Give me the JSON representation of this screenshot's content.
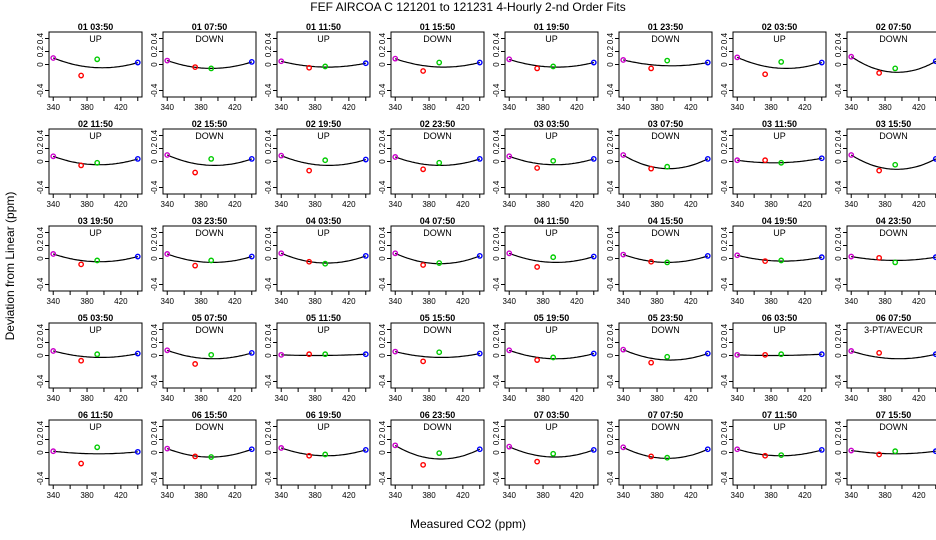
{
  "chart_data": {
    "type": "scatter",
    "title": "FEF   AIRCOA C   121201 to 121231   4-Hourly 2-nd Order Fits",
    "xlabel": "Measured CO2 (ppm)",
    "ylabel": "Deviation from Linear (ppm)",
    "xlim": [
      335,
      445
    ],
    "ylim": [
      -0.5,
      0.5
    ],
    "xticks": [
      340,
      380,
      420
    ],
    "xminorticks": [
      360,
      400,
      440
    ],
    "yticks": [
      -0.4,
      0.0,
      0.2,
      0.4
    ],
    "ytick_labels": [
      "-0.4",
      "0",
      "0.2",
      "0.4"
    ],
    "point_colors": [
      "#cc00cc",
      "#ff0000",
      "#00cc00",
      "#0000ff"
    ],
    "standard_x": [
      340,
      373,
      392,
      440
    ],
    "panels": [
      {
        "title": "01 03:50",
        "label": "UP",
        "points": [
          0.1,
          -0.17,
          0.08,
          0.03
        ],
        "curve": [
          0.1,
          -0.05,
          0.03
        ]
      },
      {
        "title": "01 07:50",
        "label": "DOWN",
        "points": [
          0.06,
          -0.04,
          -0.06,
          0.04
        ],
        "curve": [
          0.06,
          -0.06,
          0.04
        ]
      },
      {
        "title": "01 11:50",
        "label": "UP",
        "points": [
          0.05,
          -0.05,
          -0.03,
          0.02
        ],
        "curve": [
          0.05,
          -0.04,
          0.02
        ]
      },
      {
        "title": "01 15:50",
        "label": "DOWN",
        "points": [
          0.09,
          -0.1,
          0.03,
          0.03
        ],
        "curve": [
          0.09,
          -0.04,
          0.03
        ]
      },
      {
        "title": "01 19:50",
        "label": "UP",
        "points": [
          0.08,
          -0.06,
          -0.03,
          0.03
        ],
        "curve": [
          0.08,
          -0.04,
          0.03
        ]
      },
      {
        "title": "01 23:50",
        "label": "DOWN",
        "points": [
          0.07,
          -0.06,
          0.06,
          0.03
        ],
        "curve": [
          0.07,
          -0.02,
          0.03
        ]
      },
      {
        "title": "02 03:50",
        "label": "UP",
        "points": [
          0.11,
          -0.15,
          0.04,
          0.03
        ],
        "curve": [
          0.11,
          -0.06,
          0.03
        ]
      },
      {
        "title": "02 07:50",
        "label": "DOWN",
        "points": [
          0.12,
          -0.13,
          -0.06,
          0.05
        ],
        "curve": [
          0.12,
          -0.12,
          0.05
        ]
      },
      {
        "title": "02 11:50",
        "label": "UP",
        "points": [
          0.08,
          -0.06,
          -0.02,
          0.04
        ],
        "curve": [
          0.08,
          -0.05,
          0.04
        ]
      },
      {
        "title": "02 15:50",
        "label": "DOWN",
        "points": [
          0.1,
          -0.17,
          0.04,
          0.04
        ],
        "curve": [
          0.1,
          -0.06,
          0.04
        ]
      },
      {
        "title": "02 19:50",
        "label": "UP",
        "points": [
          0.09,
          -0.14,
          0.02,
          0.03
        ],
        "curve": [
          0.09,
          -0.06,
          0.03
        ]
      },
      {
        "title": "02 23:50",
        "label": "DOWN",
        "points": [
          0.07,
          -0.12,
          -0.02,
          0.04
        ],
        "curve": [
          0.07,
          -0.06,
          0.04
        ]
      },
      {
        "title": "03 03:50",
        "label": "UP",
        "points": [
          0.08,
          -0.1,
          0.01,
          0.04
        ],
        "curve": [
          0.08,
          -0.05,
          0.04
        ]
      },
      {
        "title": "03 07:50",
        "label": "DOWN",
        "points": [
          0.1,
          -0.11,
          -0.08,
          0.04
        ],
        "curve": [
          0.1,
          -0.11,
          0.04
        ]
      },
      {
        "title": "03 11:50",
        "label": "UP",
        "points": [
          0.02,
          0.02,
          -0.02,
          0.05
        ],
        "curve": [
          0.02,
          -0.02,
          0.05
        ]
      },
      {
        "title": "03 15:50",
        "label": "DOWN",
        "points": [
          0.1,
          -0.14,
          -0.05,
          0.04
        ],
        "curve": [
          0.1,
          -0.12,
          0.04
        ]
      },
      {
        "title": "03 19:50",
        "label": "UP",
        "points": [
          0.07,
          -0.09,
          -0.03,
          0.03
        ],
        "curve": [
          0.07,
          -0.05,
          0.03
        ]
      },
      {
        "title": "03 23:50",
        "label": "DOWN",
        "points": [
          0.07,
          -0.11,
          -0.03,
          0.03
        ],
        "curve": [
          0.07,
          -0.06,
          0.03
        ]
      },
      {
        "title": "04 03:50",
        "label": "UP",
        "points": [
          0.08,
          -0.05,
          -0.08,
          0.04
        ],
        "curve": [
          0.08,
          -0.07,
          0.04
        ]
      },
      {
        "title": "04 07:50",
        "label": "DOWN",
        "points": [
          0.08,
          -0.1,
          -0.07,
          0.04
        ],
        "curve": [
          0.08,
          -0.08,
          0.04
        ]
      },
      {
        "title": "04 11:50",
        "label": "UP",
        "points": [
          0.08,
          -0.13,
          0.02,
          0.03
        ],
        "curve": [
          0.08,
          -0.06,
          0.03
        ]
      },
      {
        "title": "04 15:50",
        "label": "DOWN",
        "points": [
          0.06,
          -0.05,
          -0.06,
          0.04
        ],
        "curve": [
          0.06,
          -0.06,
          0.04
        ]
      },
      {
        "title": "04 19:50",
        "label": "UP",
        "points": [
          0.05,
          -0.04,
          -0.03,
          0.02
        ],
        "curve": [
          0.05,
          -0.04,
          0.02
        ]
      },
      {
        "title": "04 23:50",
        "label": "DOWN",
        "points": [
          0.03,
          0.01,
          -0.06,
          0.02
        ],
        "curve": [
          0.03,
          -0.03,
          0.02
        ]
      },
      {
        "title": "05 03:50",
        "label": "UP",
        "points": [
          0.07,
          -0.08,
          0.02,
          0.03
        ],
        "curve": [
          0.07,
          -0.03,
          0.03
        ]
      },
      {
        "title": "05 07:50",
        "label": "DOWN",
        "points": [
          0.08,
          -0.13,
          0.01,
          0.04
        ],
        "curve": [
          0.08,
          -0.05,
          0.04
        ]
      },
      {
        "title": "05 11:50",
        "label": "UP",
        "points": [
          0.01,
          0.02,
          0.02,
          0.02
        ],
        "curve": [
          0.01,
          0.0,
          0.02
        ]
      },
      {
        "title": "05 15:50",
        "label": "DOWN",
        "points": [
          0.06,
          -0.09,
          0.05,
          0.03
        ],
        "curve": [
          0.06,
          -0.03,
          0.03
        ]
      },
      {
        "title": "05 19:50",
        "label": "UP",
        "points": [
          0.08,
          -0.07,
          -0.03,
          0.03
        ],
        "curve": [
          0.08,
          -0.05,
          0.03
        ]
      },
      {
        "title": "05 23:50",
        "label": "DOWN",
        "points": [
          0.09,
          -0.11,
          -0.02,
          0.03
        ],
        "curve": [
          0.09,
          -0.07,
          0.03
        ]
      },
      {
        "title": "06 03:50",
        "label": "UP",
        "points": [
          0.01,
          0.01,
          0.02,
          0.02
        ],
        "curve": [
          0.01,
          0.0,
          0.02
        ]
      },
      {
        "title": "06 07:50",
        "label": "3-PT/AVECUR",
        "points": [
          0.07,
          0.04,
          null,
          0.02
        ],
        "curve": [
          0.07,
          -0.05,
          0.02
        ]
      },
      {
        "title": "06 11:50",
        "label": "UP",
        "points": [
          0.02,
          -0.17,
          0.08,
          0.01
        ],
        "curve": [
          0.02,
          -0.02,
          0.01
        ]
      },
      {
        "title": "06 15:50",
        "label": "DOWN",
        "points": [
          0.06,
          -0.06,
          -0.07,
          0.05
        ],
        "curve": [
          0.06,
          -0.07,
          0.05
        ]
      },
      {
        "title": "06 19:50",
        "label": "UP",
        "points": [
          0.07,
          -0.05,
          -0.03,
          0.04
        ],
        "curve": [
          0.07,
          -0.05,
          0.04
        ]
      },
      {
        "title": "06 23:50",
        "label": "DOWN",
        "points": [
          0.11,
          -0.19,
          -0.01,
          0.05
        ],
        "curve": [
          0.11,
          -0.1,
          0.05
        ]
      },
      {
        "title": "07 03:50",
        "label": "UP",
        "points": [
          0.09,
          -0.14,
          -0.02,
          0.04
        ],
        "curve": [
          0.09,
          -0.07,
          0.04
        ]
      },
      {
        "title": "07 07:50",
        "label": "DOWN",
        "points": [
          0.08,
          -0.06,
          -0.08,
          0.05
        ],
        "curve": [
          0.08,
          -0.09,
          0.05
        ]
      },
      {
        "title": "07 11:50",
        "label": "UP",
        "points": [
          0.05,
          -0.05,
          -0.04,
          0.04
        ],
        "curve": [
          0.05,
          -0.05,
          0.04
        ]
      },
      {
        "title": "07 15:50",
        "label": "DOWN",
        "points": [
          0.03,
          -0.03,
          0.02,
          0.02
        ],
        "curve": [
          0.03,
          -0.02,
          0.02
        ]
      }
    ]
  }
}
